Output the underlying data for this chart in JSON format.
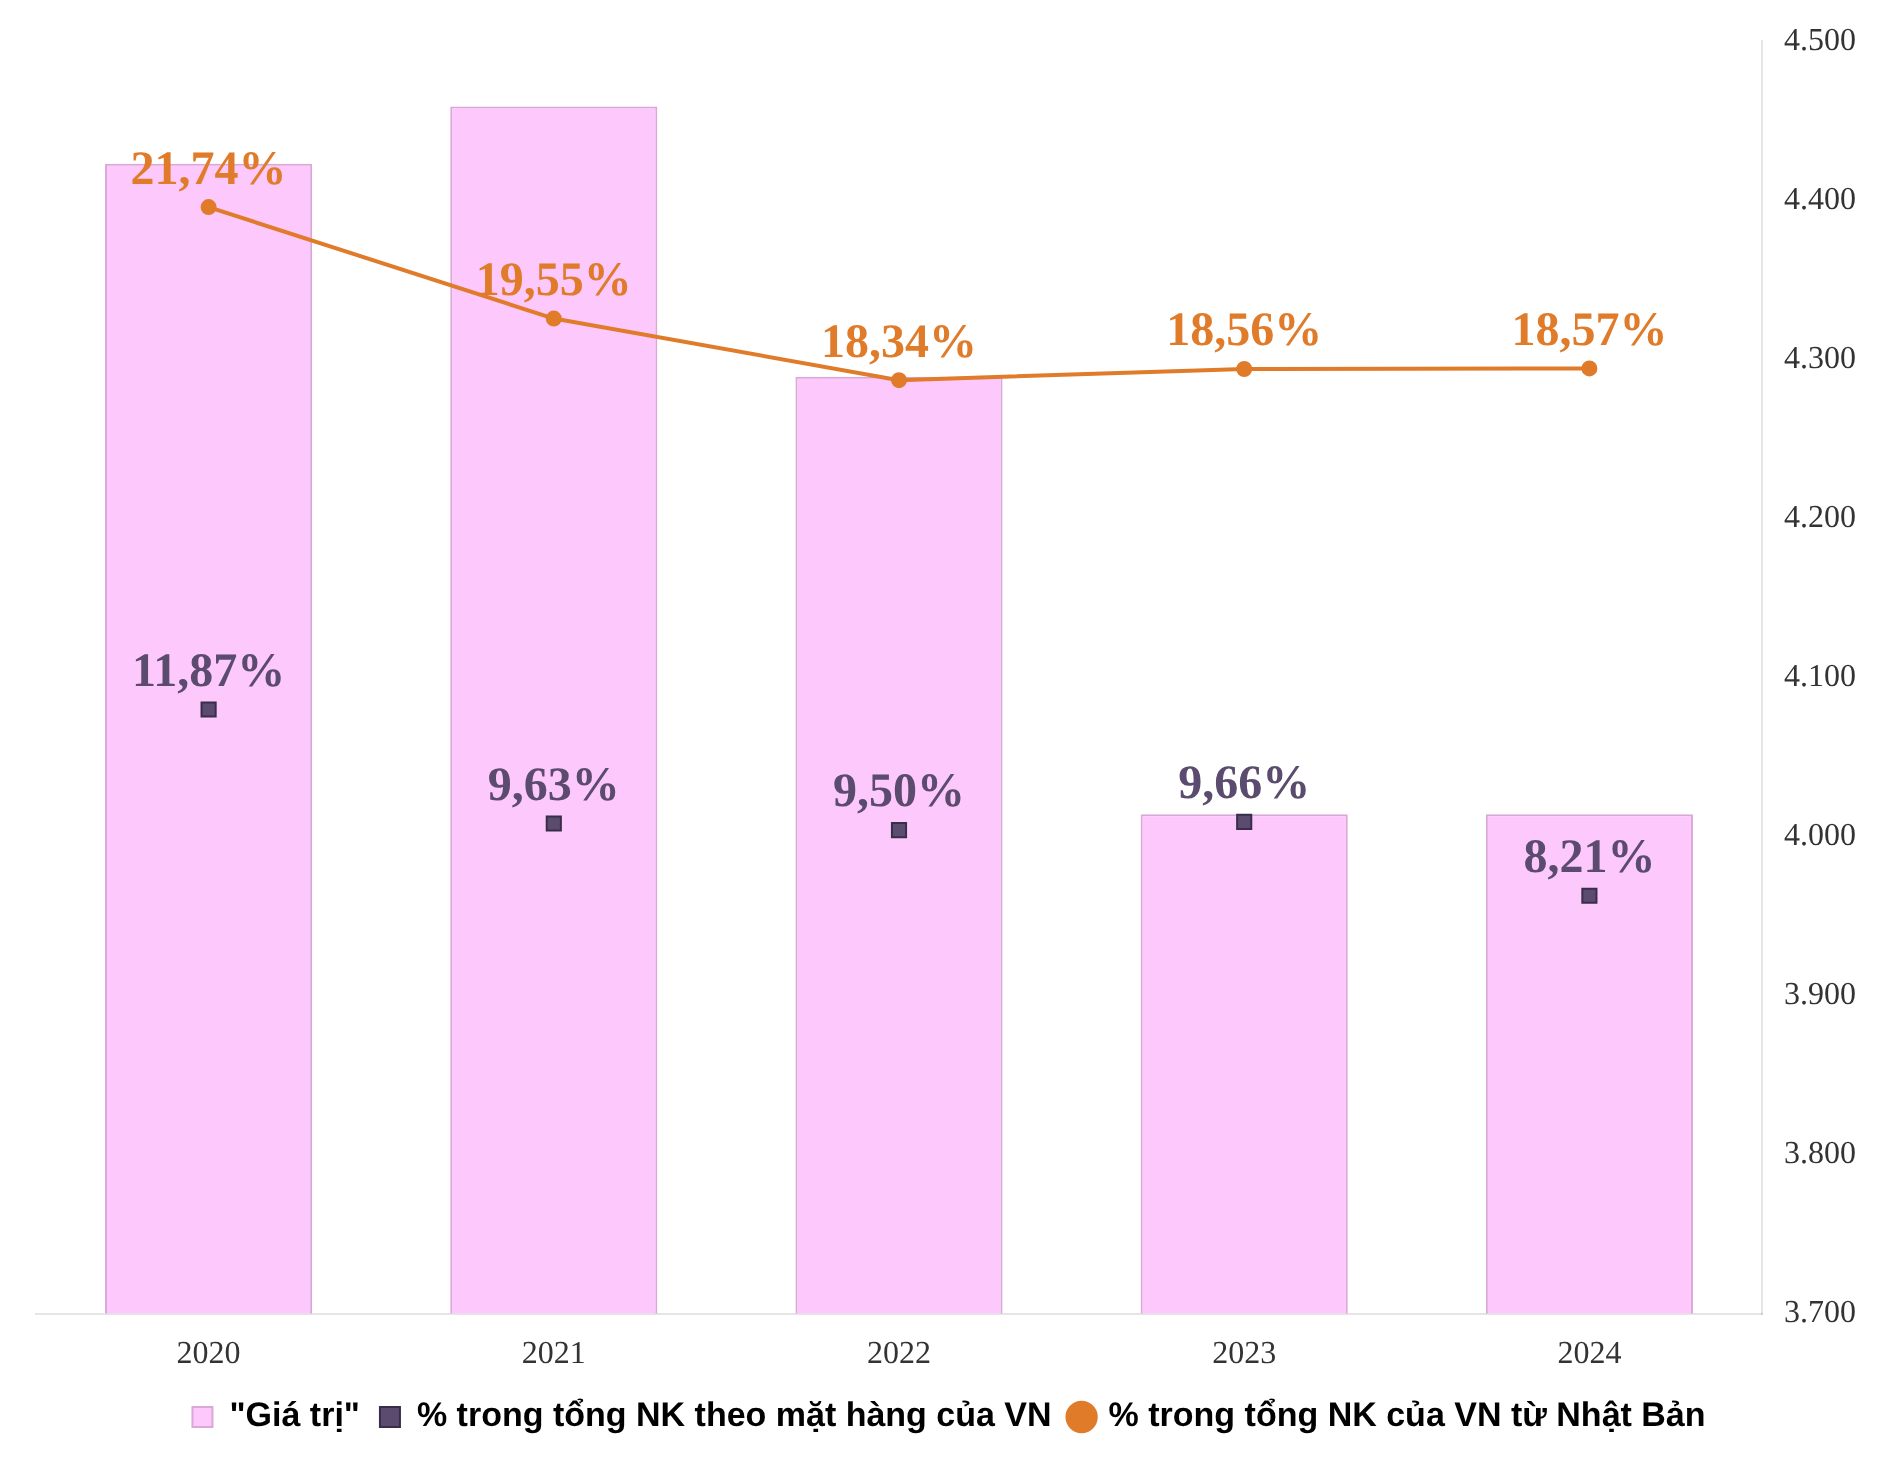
{
  "chart_data": {
    "type": "bar",
    "categories": [
      "2020",
      "2021",
      "2022",
      "2023",
      "2024"
    ],
    "series": [
      {
        "name": "\"Giá trị\"",
        "color": "#fdc8fb",
        "values": [
          4423,
          4459,
          4289,
          4014,
          4014
        ]
      },
      {
        "name": "% trong tổng NK theo mặt hàng của VN",
        "type": "scatter",
        "axis": "y2",
        "color": "#5b4b6e",
        "marker": "square",
        "values": [
          11.87,
          9.63,
          9.5,
          9.66,
          8.21
        ],
        "value_labels": [
          "11,87%",
          "9,63%",
          "9,50%",
          "9,66%",
          "8,21%"
        ]
      },
      {
        "name": "% trong tổng NK của VN từ Nhật Bản",
        "type": "line",
        "axis": "y2",
        "color": "#e07b2a",
        "marker": "circle",
        "values": [
          21.74,
          19.55,
          18.34,
          18.56,
          18.57
        ],
        "value_labels": [
          "21,74%",
          "19,55%",
          "18,34%",
          "18,56%",
          "18,57%"
        ]
      }
    ],
    "ylim": [
      3700,
      4500
    ],
    "yticks": [
      {
        "value": 3700,
        "label": "3.700"
      },
      {
        "value": 3800,
        "label": "3.800"
      },
      {
        "value": 3900,
        "label": "3.900"
      },
      {
        "value": 4000,
        "label": "4.000"
      },
      {
        "value": 4100,
        "label": "4.100"
      },
      {
        "value": 4200,
        "label": "4.200"
      },
      {
        "value": 4300,
        "label": "4.300"
      },
      {
        "value": 4400,
        "label": "4.400"
      },
      {
        "value": 4500,
        "label": "4.500"
      }
    ],
    "y2lim": [
      0,
      25
    ],
    "grid": false,
    "legend": "bottom"
  }
}
